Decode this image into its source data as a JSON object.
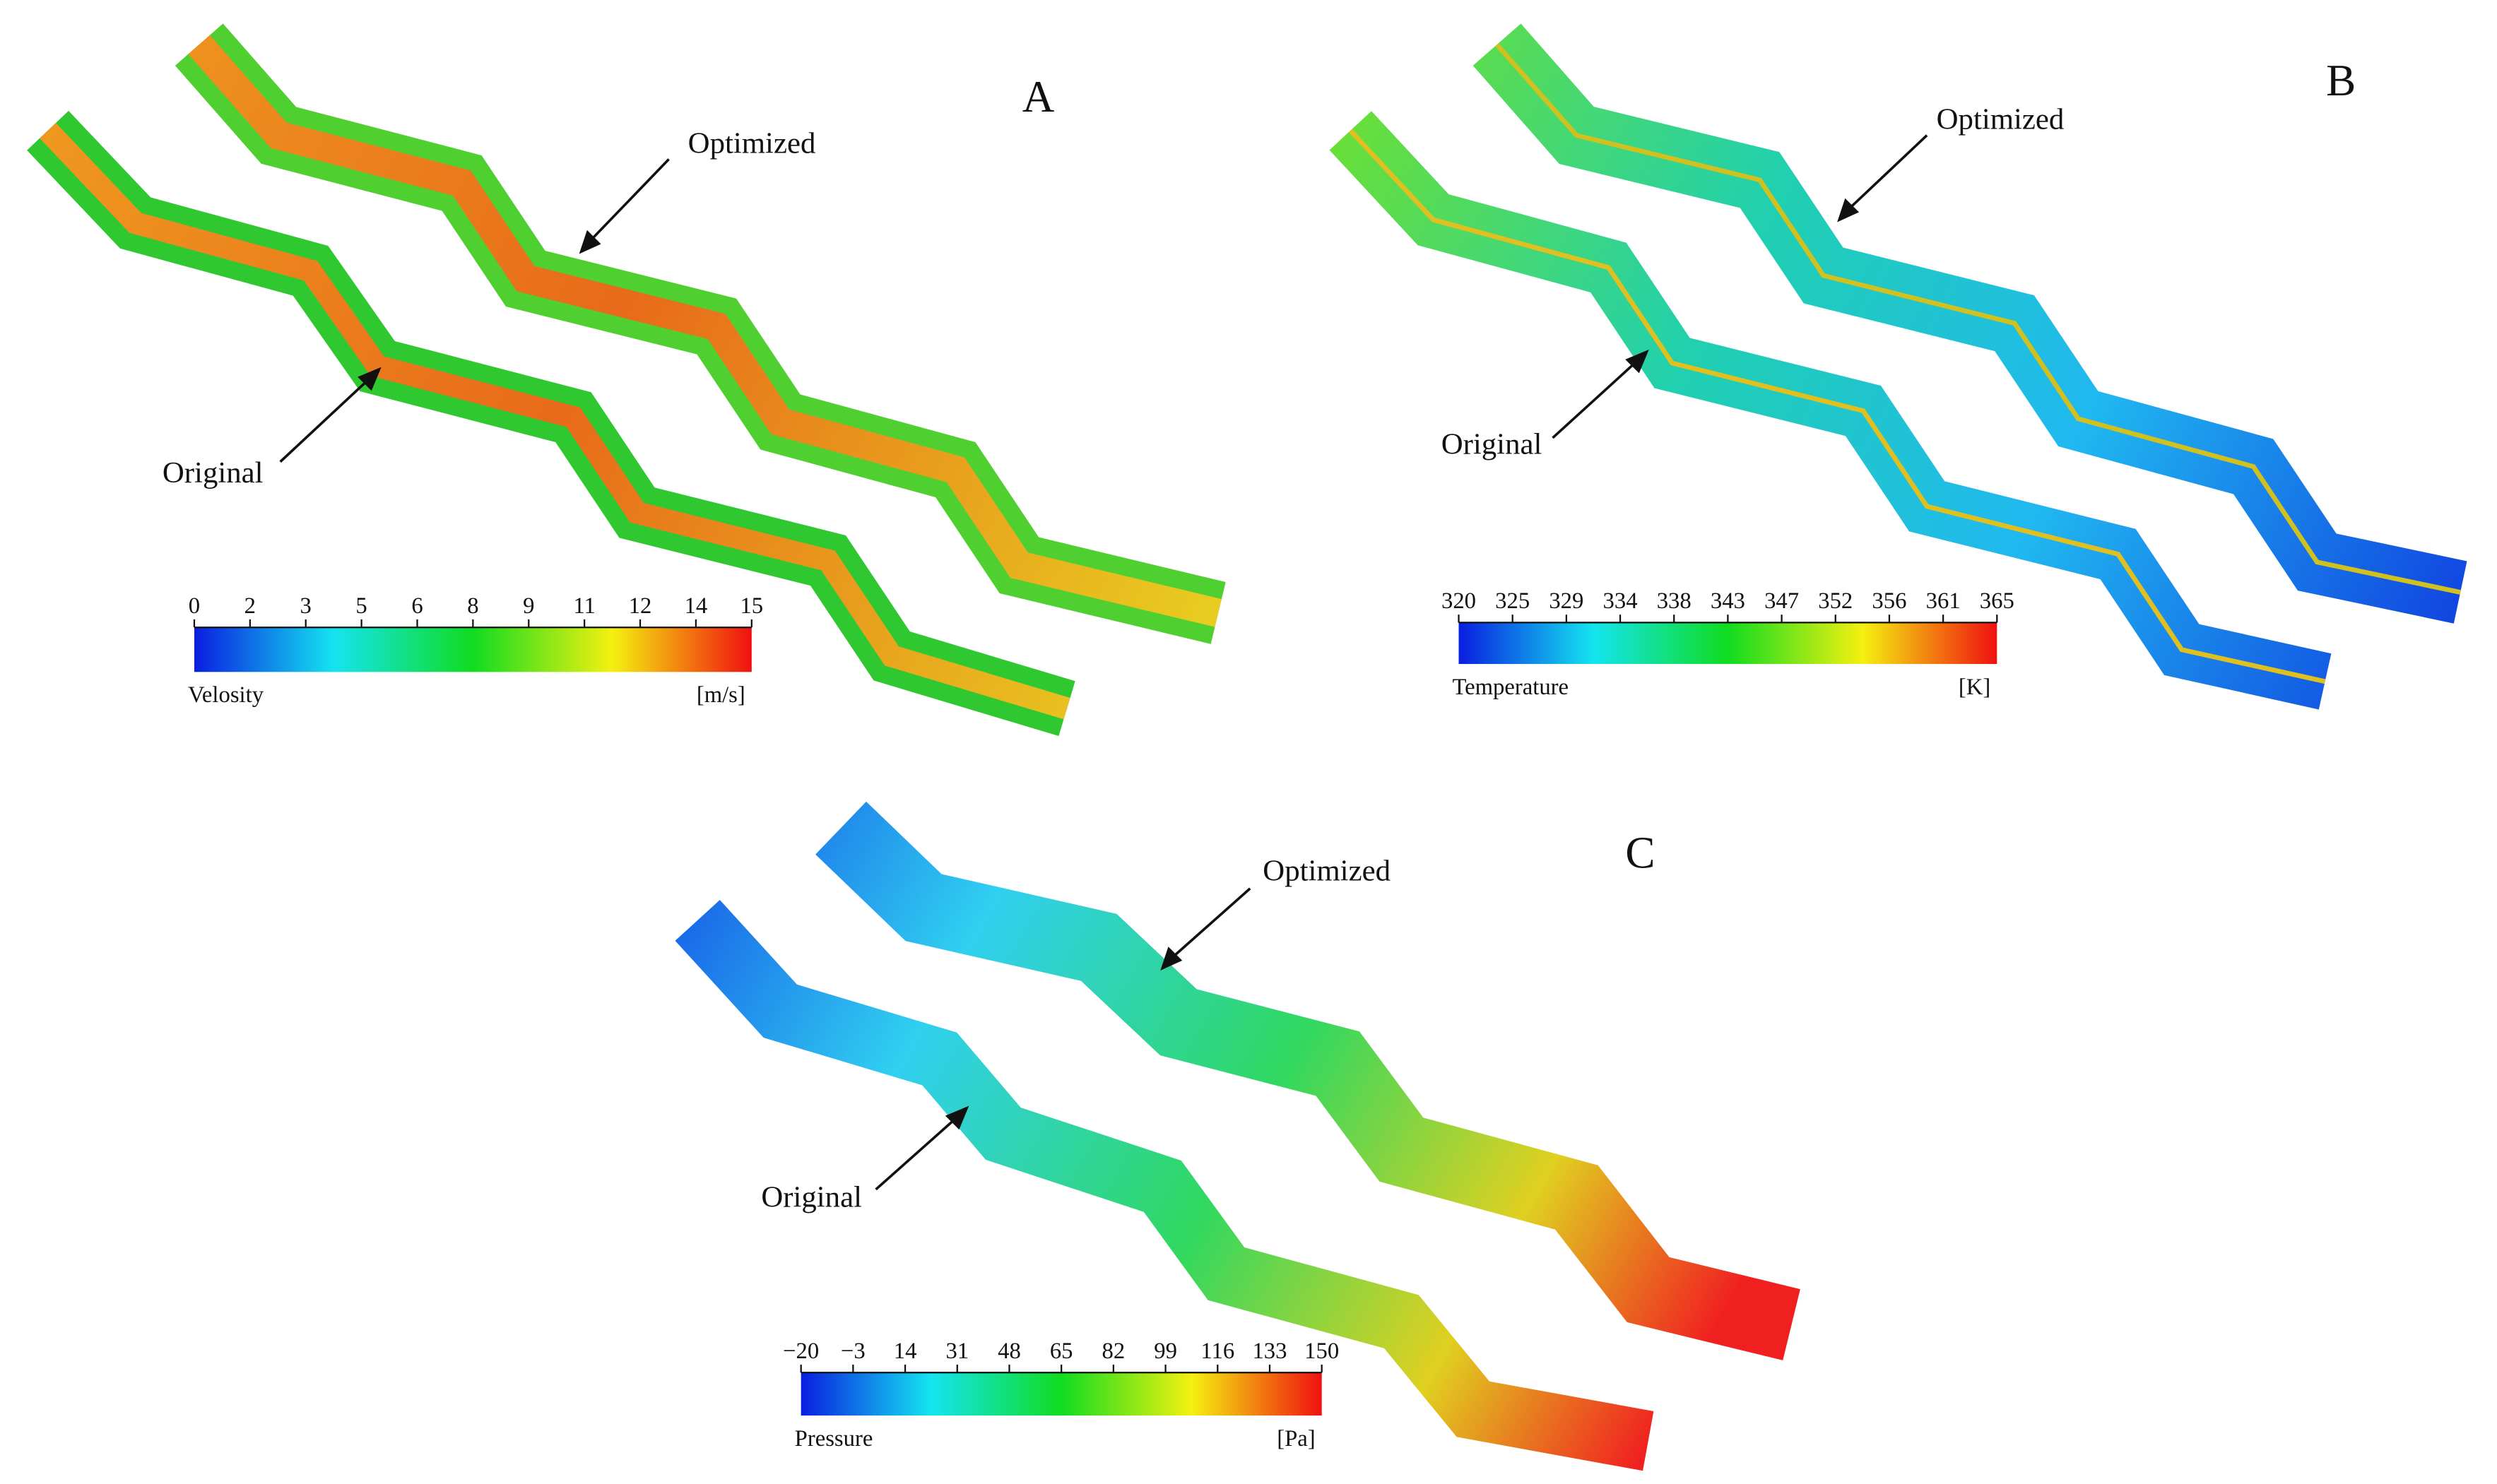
{
  "panels": [
    {
      "letter": "A",
      "optimized_label": "Optimized",
      "original_label": "Original",
      "colorbar": {
        "title": "Velosity",
        "unit": "[m/s]",
        "ticks": [
          "0",
          "2",
          "3",
          "5",
          "6",
          "8",
          "9",
          "11",
          "12",
          "14",
          "15"
        ]
      }
    },
    {
      "letter": "B",
      "optimized_label": "Optimized",
      "original_label": "Original",
      "colorbar": {
        "title": "Temperature",
        "unit": "[K]",
        "ticks": [
          "320",
          "325",
          "329",
          "334",
          "338",
          "343",
          "347",
          "352",
          "356",
          "361",
          "365"
        ]
      }
    },
    {
      "letter": "C",
      "optimized_label": "Optimized",
      "original_label": "Original",
      "colorbar": {
        "title": "Pressure",
        "unit": "[Pa]",
        "ticks": [
          "−20",
          "−3",
          "14",
          "31",
          "48",
          "65",
          "82",
          "99",
          "116",
          "133",
          "150"
        ]
      }
    }
  ]
}
